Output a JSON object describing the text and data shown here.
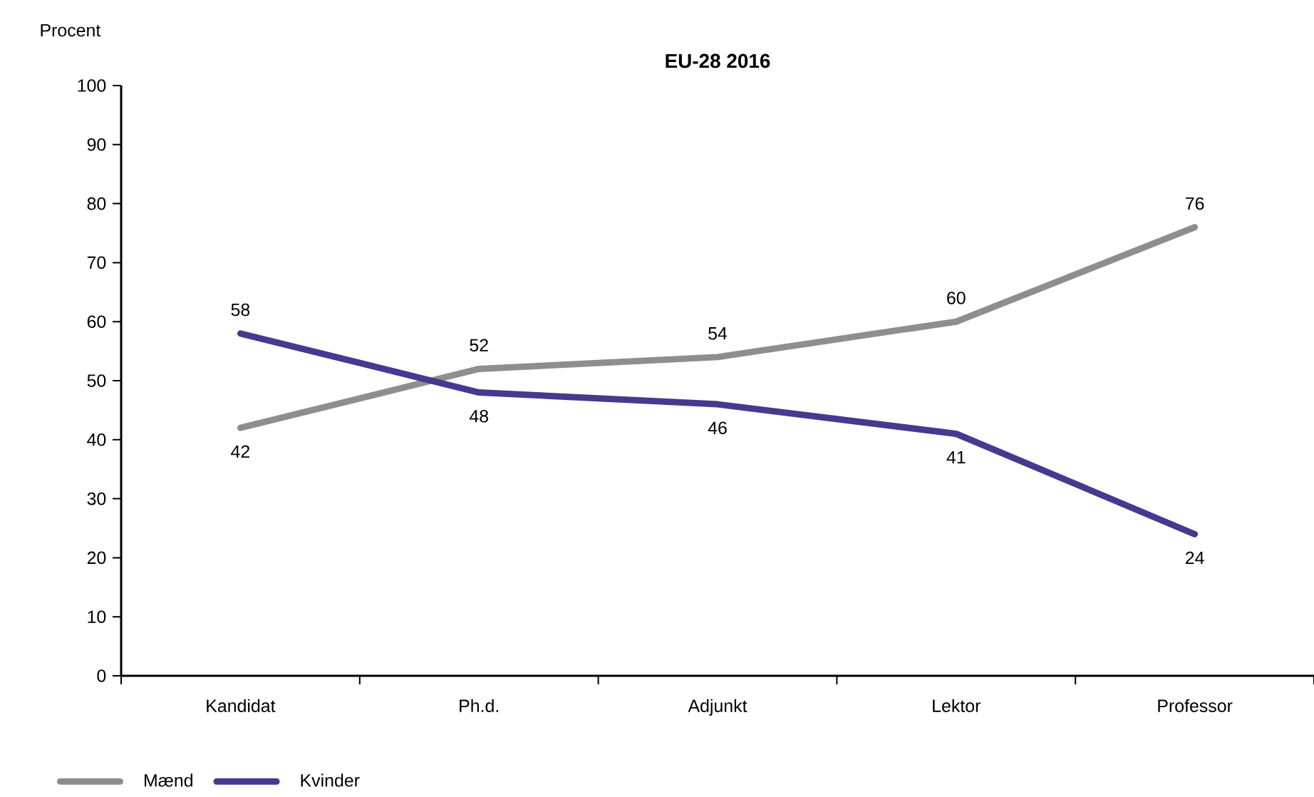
{
  "chart_data": {
    "type": "line",
    "title": "EU-28 2016",
    "ylabel": "Procent",
    "categories": [
      "Kandidat",
      "Ph.d.",
      "Adjunkt",
      "Lektor",
      "Professor"
    ],
    "series": [
      {
        "name": "Mænd",
        "color": "#8e8e8e",
        "values": [
          42,
          52,
          54,
          60,
          76
        ]
      },
      {
        "name": "Kvinder",
        "color": "#48388f",
        "values": [
          58,
          48,
          46,
          41,
          24
        ]
      }
    ],
    "ylim": [
      0,
      100
    ],
    "yticks": [
      0,
      10,
      20,
      30,
      40,
      50,
      60,
      70,
      80,
      90,
      100
    ],
    "data_labels": true,
    "legend": "bottom left",
    "grid": false,
    "marker": "none",
    "line_style": "solid"
  }
}
